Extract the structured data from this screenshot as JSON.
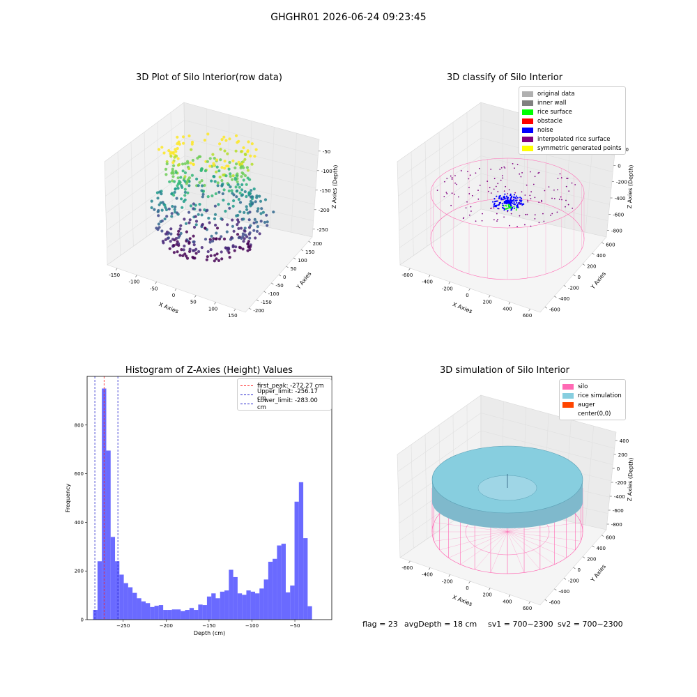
{
  "figure_title": "GHGHR01 2026-06-24 09:23:45",
  "annotations": {
    "flag": "flag = 23",
    "avg_depth": "avgDepth = 18 cm",
    "sv1": "sv1 = 700~2300",
    "sv2": "sv2 = 700~2300"
  },
  "colors": {
    "hist_bar": "#5050ff",
    "first_peak": "#ff2020",
    "limit_lines": "#2020cc",
    "silo_wire": "#ff69b4",
    "rice_sim": "#87cedf",
    "noise": "#0000ff",
    "rice_surface": "#00ff00"
  },
  "chart_data": [
    {
      "type": "scatter",
      "subtype": "3d",
      "title": "3D Plot of Silo Interior(row data)",
      "xlabel": "X Axies",
      "ylabel": "Y Axies",
      "zlabel": "Z Axies (Depth)",
      "x_ticks": [
        "-150",
        "-100",
        "-50",
        "0",
        "50",
        "100",
        "150"
      ],
      "y_ticks": [
        "200",
        "150",
        "100",
        "50",
        "0",
        "-50",
        "-100",
        "-150",
        "-200"
      ],
      "z_ticks": [
        "-50",
        "-100",
        "-150",
        "-200",
        "-250"
      ],
      "colormap": "viridis (by depth)"
    },
    {
      "type": "scatter",
      "subtype": "3d",
      "title": "3D classify of Silo Interior",
      "zlabel": "Z Axies (Depth)",
      "xlabel": "X Axies",
      "ylabel": "Y Axies",
      "x_ticks": [
        "-600",
        "-400",
        "-200",
        "0",
        "200",
        "400",
        "600"
      ],
      "y_ticks": [
        "600",
        "400",
        "200",
        "0",
        "-200",
        "-400",
        "-600"
      ],
      "z_ticks": [
        "200",
        "0",
        "-200",
        "-400",
        "-600",
        "-800"
      ],
      "legend_position": "top-right",
      "legend": [
        {
          "label": "original data",
          "color": "#b0b0b0"
        },
        {
          "label": "inner wall",
          "color": "#808080"
        },
        {
          "label": "rice surface",
          "color": "#00ff00"
        },
        {
          "label": "obstacle",
          "color": "#ff0000"
        },
        {
          "label": "noise",
          "color": "#0000ff"
        },
        {
          "label": "interpolated rice surface",
          "color": "#800080"
        },
        {
          "label": "symmetric generated points",
          "color": "#ffff00"
        }
      ]
    },
    {
      "type": "bar",
      "subtype": "histogram",
      "title": "Histogram of Z-Axies (Height) Values",
      "xlabel": "Depth (cm)",
      "ylabel": "Frequency",
      "xlim": [
        -292,
        -7
      ],
      "ylim": [
        0,
        1000
      ],
      "x_ticks": [
        -250,
        -200,
        -150,
        -100,
        -50
      ],
      "y_ticks": [
        0,
        200,
        400,
        600,
        800
      ],
      "bin_width": 5.1,
      "bin_start": -285,
      "values": [
        40,
        240,
        950,
        695,
        340,
        240,
        185,
        150,
        133,
        110,
        88,
        75,
        68,
        52,
        57,
        60,
        40,
        40,
        42,
        42,
        35,
        40,
        48,
        40,
        62,
        60,
        95,
        108,
        88,
        115,
        120,
        205,
        175,
        108,
        102,
        120,
        115,
        108,
        128,
        165,
        238,
        250,
        305,
        312,
        112,
        140,
        485,
        565,
        335,
        55
      ],
      "vlines": [
        {
          "label": "first_peak: -272.27 cm",
          "x": -272.27,
          "color": "#ff2020"
        },
        {
          "label": "Upper_limit: -256.17 cm",
          "x": -256.17,
          "color": "#2020cc"
        },
        {
          "label": "Lower_limit: -283.00 cm",
          "x": -283.0,
          "color": "#2020cc"
        }
      ],
      "legend_position": "top-right"
    },
    {
      "type": "area",
      "subtype": "3d-surface",
      "title": "3D simulation of Silo Interior",
      "zlabel": "Z Axies (Depth)",
      "xlabel": "X Axies",
      "ylabel": "Y Axies",
      "x_ticks": [
        "-600",
        "-400",
        "-200",
        "0",
        "200",
        "400",
        "600"
      ],
      "y_ticks": [
        "600",
        "400",
        "200",
        "0",
        "-200",
        "-400",
        "-600"
      ],
      "z_ticks": [
        "400",
        "200",
        "0",
        "-200",
        "-400",
        "-600",
        "-800"
      ],
      "legend_position": "top-right",
      "legend": [
        {
          "label": "silo",
          "color": "#ff69b4"
        },
        {
          "label": "rice simulation",
          "color": "#87cedf"
        },
        {
          "label": "auger",
          "color": "#ff4500"
        },
        {
          "label": "center(0,0)",
          "color": ""
        }
      ]
    }
  ]
}
